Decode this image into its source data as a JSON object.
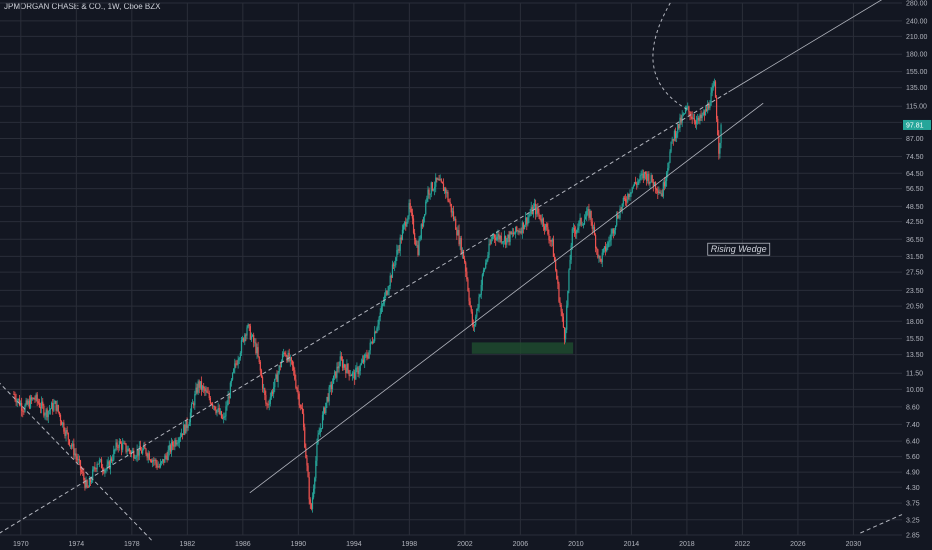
{
  "title": "JPMORGAN CHASE & CO., 1W, Cboe BZX",
  "chart_data": {
    "type": "candlestick",
    "symbol": "JPMORGAN CHASE & CO.",
    "interval": "1W",
    "exchange": "Cboe BZX",
    "yscale": "log",
    "ylim": [
      2.85,
      280
    ],
    "xlim": [
      1968.5,
      2033.5
    ],
    "y_ticks": [
      2.85,
      3.25,
      3.75,
      4.3,
      4.9,
      5.6,
      6.4,
      7.4,
      8.6,
      10.0,
      11.5,
      13.5,
      15.5,
      18.0,
      20.5,
      23.5,
      27.5,
      31.5,
      36.5,
      42.5,
      48.5,
      56.5,
      64.5,
      74.5,
      87.0,
      100.0,
      115.0,
      135.0,
      155.0,
      180.0,
      210.0,
      240.0,
      280.0
    ],
    "y_tick_labels": [
      "2.85",
      "3.25",
      "3.75",
      "4.30",
      "4.90",
      "5.60",
      "6.40",
      "7.40",
      "8.60",
      "10.00",
      "11.50",
      "13.50",
      "15.50",
      "18.00",
      "20.50",
      "23.50",
      "27.50",
      "31.50",
      "36.50",
      "42.50",
      "48.50",
      "56.50",
      "64.50",
      "74.50",
      "87.00",
      "",
      "115.00",
      "135.00",
      "155.00",
      "180.00",
      "210.00",
      "240.00",
      "280.00"
    ],
    "x_ticks": [
      1970,
      1974,
      1978,
      1982,
      1986,
      1990,
      1994,
      1998,
      2002,
      2006,
      2010,
      2014,
      2018,
      2022,
      2026,
      2030
    ],
    "x_tick_labels": [
      "1970",
      "1974",
      "1978",
      "1982",
      "1986",
      "1990",
      "1994",
      "1998",
      "2002",
      "2006",
      "2010",
      "2014",
      "2018",
      "2022",
      "2026",
      "2030"
    ],
    "last_price": "97.81",
    "price_path": [
      [
        1969.5,
        9.6
      ],
      [
        1970.2,
        8.5
      ],
      [
        1971.0,
        9.3
      ],
      [
        1971.8,
        8.2
      ],
      [
        1972.5,
        8.8
      ],
      [
        1973.2,
        7.0
      ],
      [
        1974.0,
        5.6
      ],
      [
        1974.8,
        4.2
      ],
      [
        1975.5,
        5.4
      ],
      [
        1976.2,
        5.0
      ],
      [
        1977.0,
        6.3
      ],
      [
        1978.0,
        5.8
      ],
      [
        1979.0,
        5.9
      ],
      [
        1980.0,
        5.1
      ],
      [
        1981.0,
        6.3
      ],
      [
        1982.0,
        7.4
      ],
      [
        1982.8,
        10.5
      ],
      [
        1983.8,
        9.0
      ],
      [
        1984.6,
        7.6
      ],
      [
        1985.4,
        12.0
      ],
      [
        1986.3,
        17.3
      ],
      [
        1987.0,
        14.0
      ],
      [
        1987.7,
        8.6
      ],
      [
        1988.3,
        10.5
      ],
      [
        1989.0,
        14.0
      ],
      [
        1989.6,
        12.0
      ],
      [
        1990.3,
        8.0
      ],
      [
        1990.9,
        3.4
      ],
      [
        1991.4,
        6.5
      ],
      [
        1992.0,
        9.0
      ],
      [
        1993.0,
        12.8
      ],
      [
        1994.0,
        11.2
      ],
      [
        1995.0,
        13.5
      ],
      [
        1996.0,
        20.0
      ],
      [
        1997.0,
        31.0
      ],
      [
        1998.0,
        48.0
      ],
      [
        1998.6,
        33.0
      ],
      [
        1999.3,
        55.0
      ],
      [
        2000.0,
        60.0
      ],
      [
        2000.6,
        56.0
      ],
      [
        2001.3,
        42.0
      ],
      [
        2002.0,
        30.0
      ],
      [
        2002.6,
        16.5
      ],
      [
        2003.3,
        27.0
      ],
      [
        2004.0,
        38.0
      ],
      [
        2005.0,
        36.5
      ],
      [
        2006.0,
        40.0
      ],
      [
        2007.0,
        48.0
      ],
      [
        2007.7,
        42.0
      ],
      [
        2008.3,
        35.0
      ],
      [
        2008.9,
        20.0
      ],
      [
        2009.2,
        15.8
      ],
      [
        2009.7,
        38.0
      ],
      [
        2010.3,
        42.0
      ],
      [
        2011.0,
        46.0
      ],
      [
        2011.7,
        30.0
      ],
      [
        2012.4,
        36.0
      ],
      [
        2013.0,
        45.0
      ],
      [
        2014.0,
        57.0
      ],
      [
        2015.0,
        64.0
      ],
      [
        2015.8,
        58.0
      ],
      [
        2016.2,
        54.0
      ],
      [
        2017.0,
        88.0
      ],
      [
        2018.0,
        112.0
      ],
      [
        2018.8,
        100.0
      ],
      [
        2019.4,
        110.0
      ],
      [
        2020.0,
        138.0
      ],
      [
        2020.3,
        80.0
      ],
      [
        2020.5,
        97.8
      ]
    ]
  },
  "annotations": {
    "pattern_label": "Rising Wedge"
  },
  "colors": {
    "background": "#131722",
    "grid": "#2a2e39",
    "up": "#26a69a",
    "down": "#ef5350",
    "trendline": "#b2b5be",
    "zone": "#1f4a2e",
    "badge": "#26a69a"
  }
}
